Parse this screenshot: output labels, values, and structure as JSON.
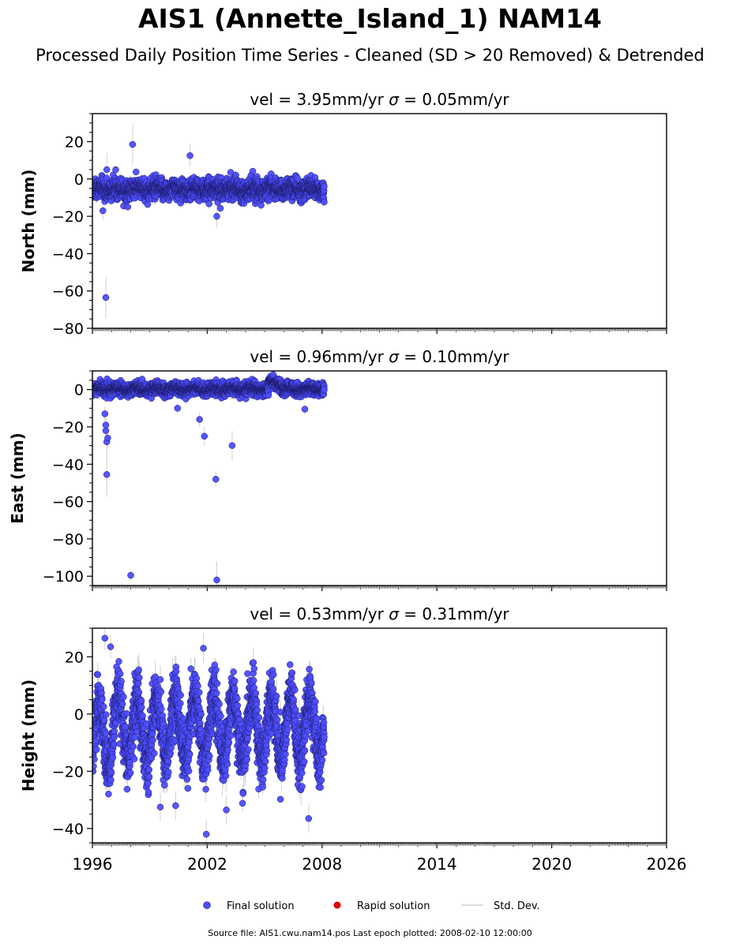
{
  "title": "AIS1 (Annette_Island_1) NAM14",
  "subtitle": "Processed Daily Position Time Series - Cleaned (SD > 20 Removed) & Detrended",
  "footer": "Source file: AIS1.cwu.nam14.pos  Last epoch plotted: 2008-02-10 12:00:00",
  "legend": {
    "final": "Final solution",
    "rapid": "Rapid solution",
    "std": "Std. Dev."
  },
  "colors": {
    "final": "#4d4dff",
    "final_edge": "#1a1a66",
    "rapid": "#e00000",
    "std": "#b0b0b0"
  },
  "chart_data": [
    {
      "type": "scatter",
      "panel": "north",
      "title": "vel = 3.95mm/yr   σ = 0.05mm/yr",
      "title_parts": [
        "vel = 3.95mm/yr",
        "σ",
        "= 0.05mm/yr"
      ],
      "ylabel": "North (mm)",
      "xlim": [
        1996,
        2026
      ],
      "ylim": [
        -80,
        35
      ],
      "yticks": [
        20,
        0,
        -20,
        -40,
        -60,
        -80
      ],
      "ytick_labels": [
        "20",
        "0",
        "−20",
        "−40",
        "−60",
        "−80"
      ],
      "data_range": [
        1996.0,
        2008.11
      ],
      "baseline": -5.5,
      "noise": 2.6,
      "seasonal_amp": 0.8,
      "typical_sd": 3.5,
      "outliers": [
        {
          "x": 1996.7,
          "y": -63.5,
          "sd": 11
        },
        {
          "x": 1998.1,
          "y": 18.5,
          "sd": 11
        },
        {
          "x": 2001.1,
          "y": 12.5,
          "sd": 6
        },
        {
          "x": 1996.75,
          "y": 5,
          "sd": 9
        },
        {
          "x": 1996.55,
          "y": -17,
          "sd": 5
        },
        {
          "x": 2002.5,
          "y": -20,
          "sd": 6
        }
      ],
      "grid": false,
      "legend": "bottom-center"
    },
    {
      "type": "scatter",
      "panel": "east",
      "title": "vel = 0.96mm/yr   σ = 0.10mm/yr",
      "title_parts": [
        "vel = 0.96mm/yr",
        "σ",
        "= 0.10mm/yr"
      ],
      "ylabel": "East (mm)",
      "xlim": [
        1996,
        2026
      ],
      "ylim": [
        -105,
        10
      ],
      "yticks": [
        0,
        -20,
        -40,
        -60,
        -80,
        -100
      ],
      "ytick_labels": [
        "0",
        "−20",
        "−40",
        "−60",
        "−80",
        "−100"
      ],
      "data_range": [
        1996.0,
        2008.11
      ],
      "baseline": 0.3,
      "noise": 1.6,
      "seasonal_amp": 0.8,
      "typical_sd": 2.5,
      "outliers": [
        {
          "x": 1996.75,
          "y": -45.5,
          "sd": 12
        },
        {
          "x": 1996.75,
          "y": -28,
          "sd": 6
        },
        {
          "x": 1996.8,
          "y": -26,
          "sd": 5
        },
        {
          "x": 1996.7,
          "y": -22,
          "sd": 4
        },
        {
          "x": 1996.7,
          "y": -19,
          "sd": 4
        },
        {
          "x": 1996.65,
          "y": -13,
          "sd": 4
        },
        {
          "x": 1998.0,
          "y": -99.5,
          "sd": 3
        },
        {
          "x": 2001.6,
          "y": -16,
          "sd": 4
        },
        {
          "x": 2001.85,
          "y": -25,
          "sd": 5
        },
        {
          "x": 2002.45,
          "y": -48,
          "sd": 4
        },
        {
          "x": 2002.5,
          "y": -102,
          "sd": 10
        },
        {
          "x": 2003.3,
          "y": -30,
          "sd": 8
        },
        {
          "x": 2005.45,
          "y": 8,
          "sd": 3
        },
        {
          "x": 2007.1,
          "y": -10.5,
          "sd": 3
        },
        {
          "x": 2000.45,
          "y": -10,
          "sd": 3
        }
      ],
      "grid": false,
      "legend": "bottom-center"
    },
    {
      "type": "scatter",
      "panel": "height",
      "title": "vel = 0.53mm/yr   σ = 0.31mm/yr",
      "title_parts": [
        "vel = 0.53mm/yr",
        "σ",
        "= 0.31mm/yr"
      ],
      "ylabel": "Height (mm)",
      "xlim": [
        1996,
        2026
      ],
      "ylim": [
        -45,
        30
      ],
      "yticks": [
        20,
        0,
        -20,
        -40
      ],
      "ytick_labels": [
        "20",
        "0",
        "−20",
        "−40"
      ],
      "xticks": [
        1996,
        2002,
        2008,
        2014,
        2020,
        2026
      ],
      "xtick_labels": [
        "1996",
        "2002",
        "2008",
        "2014",
        "2020",
        "2026"
      ],
      "data_range": [
        1996.0,
        2008.11
      ],
      "baseline": -5,
      "noise": 5,
      "seasonal_amp": 11,
      "typical_sd": 7,
      "outliers": [
        {
          "x": 1996.65,
          "y": 26.5,
          "sd": 4
        },
        {
          "x": 1996.95,
          "y": 23.5,
          "sd": 4
        },
        {
          "x": 2001.8,
          "y": 23,
          "sd": 5
        },
        {
          "x": 2001.95,
          "y": -42,
          "sd": 5
        },
        {
          "x": 2007.3,
          "y": -36.5,
          "sd": 5
        },
        {
          "x": 2003.0,
          "y": -33.5,
          "sd": 5
        },
        {
          "x": 2000.35,
          "y": -32,
          "sd": 5
        },
        {
          "x": 1999.55,
          "y": -32.5,
          "sd": 5
        }
      ],
      "grid": false,
      "legend": "bottom-center"
    }
  ]
}
